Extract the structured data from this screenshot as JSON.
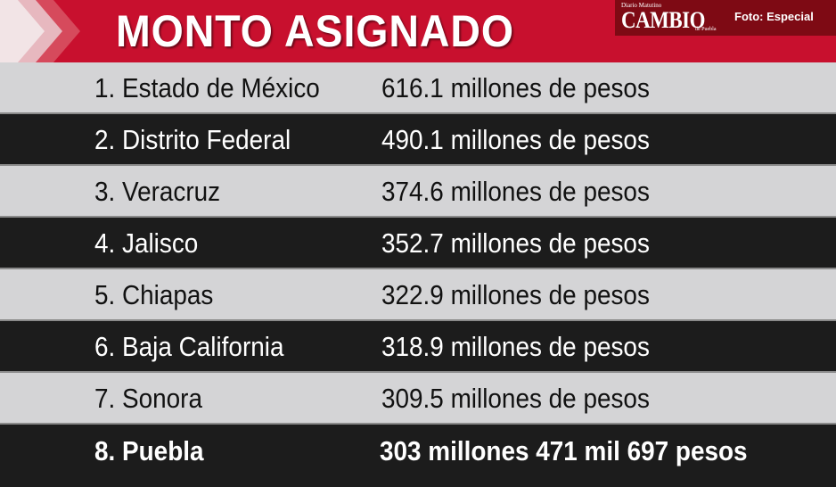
{
  "header": {
    "title": "MONTO ASIGNADO",
    "logo_tagline": "Diario Matutino",
    "logo_name": "CAMBIO",
    "logo_city": "de Puebla",
    "credit": "Foto: Especial"
  },
  "rows": [
    {
      "rank": "1. Estado de México",
      "amount": "616.1 millones de pesos"
    },
    {
      "rank": "2. Distrito Federal",
      "amount": "490.1 millones de pesos"
    },
    {
      "rank": "3. Veracruz",
      "amount": "374.6 millones de pesos"
    },
    {
      "rank": "4. Jalisco",
      "amount": "352.7 millones de pesos"
    },
    {
      "rank": "5. Chiapas",
      "amount": "322.9 millones de pesos"
    },
    {
      "rank": "6. Baja California",
      "amount": "318.9 millones de pesos"
    },
    {
      "rank": "7. Sonora",
      "amount": "309.5 millones de pesos"
    },
    {
      "rank": "8. Puebla",
      "amount": "303 millones 471 mil 697 pesos"
    }
  ],
  "colors": {
    "header_red": "#c8102e",
    "logo_box": "#7e0a14",
    "row_light": "#d4d4d6",
    "row_dark": "#1c1c1c"
  }
}
